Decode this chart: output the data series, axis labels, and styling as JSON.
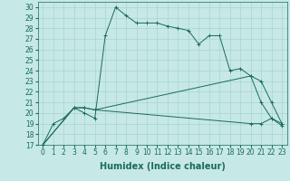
{
  "xlabel": "Humidex (Indice chaleur)",
  "ylabel": "",
  "bg_color": "#c6e8e6",
  "line_color": "#1a6b5a",
  "xlim": [
    -0.5,
    23.5
  ],
  "ylim": [
    17,
    30.5
  ],
  "xticks": [
    0,
    1,
    2,
    3,
    4,
    5,
    6,
    7,
    8,
    9,
    10,
    11,
    12,
    13,
    14,
    15,
    16,
    17,
    18,
    19,
    20,
    21,
    22,
    23
  ],
  "yticks": [
    17,
    18,
    19,
    20,
    21,
    22,
    23,
    24,
    25,
    26,
    27,
    28,
    29,
    30
  ],
  "line1_x": [
    0,
    1,
    2,
    3,
    4,
    5,
    6,
    7,
    8,
    9,
    10,
    11,
    12,
    13,
    14,
    15,
    16,
    17,
    18,
    19,
    20,
    21,
    22,
    23
  ],
  "line1_y": [
    17,
    19,
    19.5,
    20.5,
    20,
    19.5,
    27.3,
    30,
    29.2,
    28.5,
    28.5,
    28.5,
    28.2,
    28.0,
    27.8,
    26.5,
    27.3,
    27.3,
    24,
    24.2,
    23.5,
    21.0,
    19.5,
    19
  ],
  "line2_x": [
    0,
    3,
    4,
    5,
    20,
    21,
    22,
    23
  ],
  "line2_y": [
    17,
    20.5,
    20.5,
    20.3,
    23.5,
    23.0,
    21.0,
    19
  ],
  "line3_x": [
    0,
    3,
    4,
    5,
    20,
    21,
    22,
    23
  ],
  "line3_y": [
    17,
    20.5,
    20.5,
    20.3,
    19.0,
    19.0,
    19.5,
    18.8
  ],
  "grid_color": "#a8d4d0",
  "tick_fontsize": 5.5,
  "label_fontsize": 7
}
